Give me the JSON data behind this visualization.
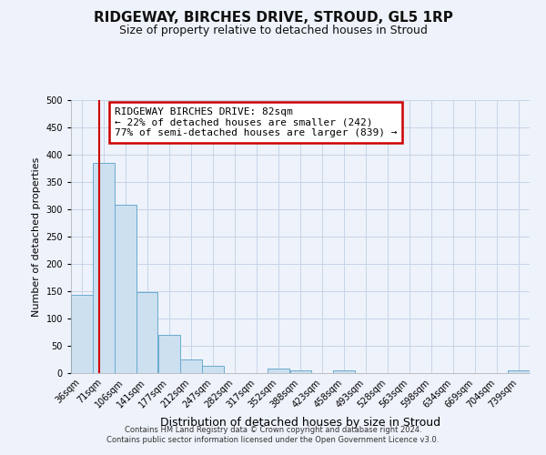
{
  "title": "RIDGEWAY, BIRCHES DRIVE, STROUD, GL5 1RP",
  "subtitle": "Size of property relative to detached houses in Stroud",
  "xlabel": "Distribution of detached houses by size in Stroud",
  "ylabel": "Number of detached properties",
  "bin_labels": [
    "36sqm",
    "71sqm",
    "106sqm",
    "141sqm",
    "177sqm",
    "212sqm",
    "247sqm",
    "282sqm",
    "317sqm",
    "352sqm",
    "388sqm",
    "423sqm",
    "458sqm",
    "493sqm",
    "528sqm",
    "563sqm",
    "598sqm",
    "634sqm",
    "669sqm",
    "704sqm",
    "739sqm"
  ],
  "bin_edges": [
    36,
    71,
    106,
    141,
    177,
    212,
    247,
    282,
    317,
    352,
    388,
    423,
    458,
    493,
    528,
    563,
    598,
    634,
    669,
    704,
    739
  ],
  "bar_heights": [
    144,
    385,
    308,
    149,
    70,
    25,
    13,
    0,
    0,
    8,
    5,
    0,
    5,
    0,
    0,
    0,
    0,
    0,
    0,
    0,
    5
  ],
  "bar_color": "#cce0f0",
  "bar_edge_color": "#6aabcf",
  "property_line_x": 82,
  "ylim": [
    0,
    500
  ],
  "yticks": [
    0,
    50,
    100,
    150,
    200,
    250,
    300,
    350,
    400,
    450,
    500
  ],
  "annotation_box_text": "RIDGEWAY BIRCHES DRIVE: 82sqm\n← 22% of detached houses are smaller (242)\n77% of semi-detached houses are larger (839) →",
  "annotation_box_color": "#ffffff",
  "annotation_box_edge_color": "#cc0000",
  "red_line_color": "#cc0000",
  "footer_text": "Contains HM Land Registry data © Crown copyright and database right 2024.\nContains public sector information licensed under the Open Government Licence v3.0.",
  "bg_color": "#eef2fa",
  "grid_color": "#c5d5e8",
  "title_fontsize": 11,
  "subtitle_fontsize": 9,
  "xlabel_fontsize": 9,
  "ylabel_fontsize": 8,
  "tick_fontsize": 7,
  "annot_fontsize": 8
}
